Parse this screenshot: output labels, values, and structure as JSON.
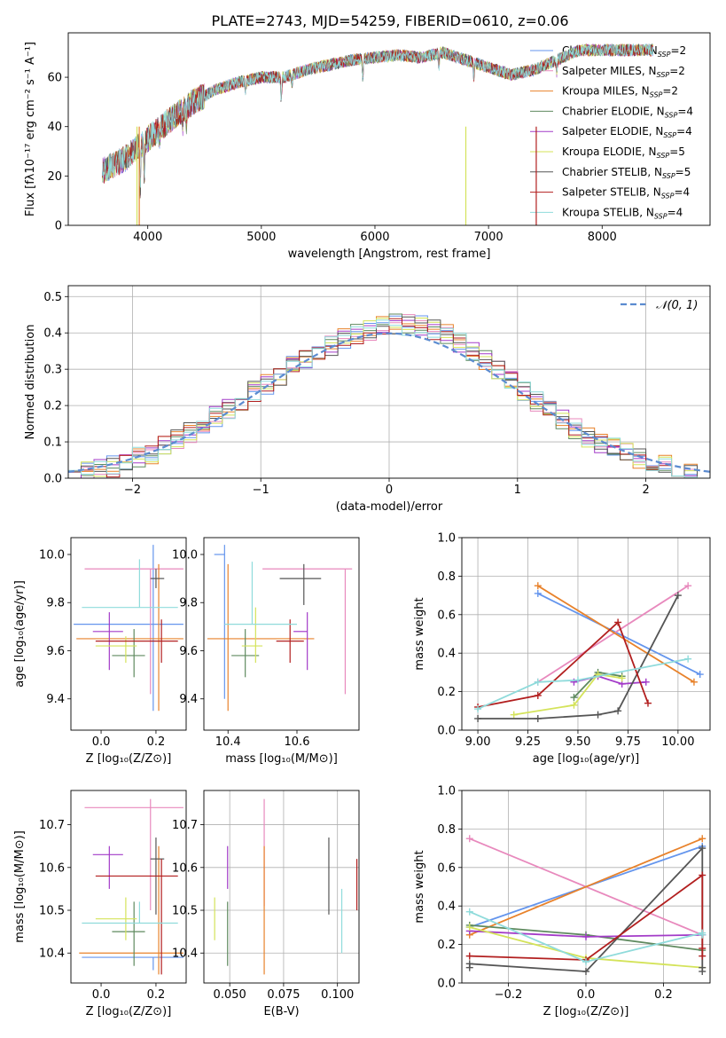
{
  "figure_title": "PLATE=2743, MJD=54259, FIBERID=0610, z=0.06",
  "colors": [
    "#6495ed",
    "#e889bd",
    "#e8822b",
    "#5f8a5f",
    "#a33bc8",
    "#d4e35a",
    "#555555",
    "#b21f1f",
    "#8fdbdb"
  ],
  "chart_data": [
    {
      "id": "spectrum",
      "type": "line",
      "title": "",
      "xlabel": "wavelength [Angstrom, rest frame]",
      "ylabel": "Flux [fλ10⁻¹⁷ erg cm⁻² s⁻¹ A⁻¹]",
      "xlim": [
        3300,
        8950
      ],
      "ylim": [
        0,
        78
      ],
      "xticks": [
        4000,
        5000,
        6000,
        7000,
        8000
      ],
      "yticks": [
        0,
        20,
        40,
        60
      ],
      "grid": false,
      "legend": "top-right",
      "continuum_x": [
        3600,
        3800,
        4000,
        4200,
        4400,
        4600,
        4800,
        5000,
        5200,
        5400,
        5600,
        5800,
        6000,
        6200,
        6400,
        6600,
        6800,
        7000,
        7200,
        7400,
        7600,
        7800
      ],
      "continuum_y": [
        22,
        27,
        35,
        43,
        50,
        55,
        58,
        60,
        60,
        63,
        65,
        67,
        68,
        69,
        68,
        70,
        67,
        64,
        61,
        63,
        67,
        71
      ],
      "absorption_lines": [
        [
          3934,
          18
        ],
        [
          3969,
          14
        ],
        [
          4102,
          6
        ],
        [
          4305,
          8
        ],
        [
          4340,
          6
        ],
        [
          4861,
          5
        ],
        [
          5175,
          10
        ],
        [
          5270,
          4
        ],
        [
          5893,
          7
        ],
        [
          6563,
          5
        ],
        [
          6870,
          6
        ],
        [
          7600,
          5
        ]
      ],
      "sky_spikes": [
        [
          3905,
          "#d4e35a"
        ],
        [
          3925,
          "#e8822b"
        ],
        [
          6800,
          "#d4e35a"
        ],
        [
          7420,
          "#b21f1f"
        ]
      ],
      "series": [
        {
          "name": "Chabrier MILES, N_SSP=2",
          "label_main": "Chabrier MILES, N",
          "label_sub": "SSP",
          "label_tail": "=2",
          "color": "#6495ed"
        },
        {
          "name": "Salpeter MILES, N_SSP=2",
          "label_main": "Salpeter MILES, N",
          "label_sub": "SSP",
          "label_tail": "=2",
          "color": "#e889bd"
        },
        {
          "name": "Kroupa MILES, N_SSP=2",
          "label_main": "Kroupa MILES, N",
          "label_sub": "SSP",
          "label_tail": "=2",
          "color": "#e8822b"
        },
        {
          "name": "Chabrier ELODIE, N_SSP=4",
          "label_main": "Chabrier ELODIE, N",
          "label_sub": "SSP",
          "label_tail": "=4",
          "color": "#5f8a5f"
        },
        {
          "name": "Salpeter ELODIE, N_SSP=4",
          "label_main": "Salpeter ELODIE, N",
          "label_sub": "SSP",
          "label_tail": "=4",
          "color": "#a33bc8"
        },
        {
          "name": "Kroupa ELODIE, N_SSP=5",
          "label_main": "Kroupa ELODIE, N",
          "label_sub": "SSP",
          "label_tail": "=5",
          "color": "#d4e35a"
        },
        {
          "name": "Chabrier STELIB, N_SSP=5",
          "label_main": "Chabrier STELIB, N",
          "label_sub": "SSP",
          "label_tail": "=5",
          "color": "#555555"
        },
        {
          "name": "Salpeter STELIB, N_SSP=4",
          "label_main": "Salpeter STELIB, N",
          "label_sub": "SSP",
          "label_tail": "=4",
          "color": "#b21f1f"
        },
        {
          "name": "Kroupa STELIB, N_SSP=4",
          "label_main": "Kroupa STELIB, N",
          "label_sub": "SSP",
          "label_tail": "=4",
          "color": "#8fdbdb"
        }
      ]
    },
    {
      "id": "residuals",
      "type": "histogram",
      "title": "",
      "xlabel": "(data-model)/error",
      "ylabel": "Normed distribution",
      "xlim": [
        -2.5,
        2.5
      ],
      "ylim": [
        0,
        0.53
      ],
      "xticks": [
        -2,
        -1,
        0,
        1,
        2
      ],
      "yticks": [
        0.0,
        0.1,
        0.2,
        0.3,
        0.4,
        0.5
      ],
      "grid": true,
      "legend": "top-right",
      "bin_width": 0.1,
      "reference_curve": {
        "name": "N(0,1)",
        "label": "𝒩(0, 1)",
        "color": "#5b8bd0",
        "style": "dashed"
      }
    },
    {
      "id": "age_vs_Z",
      "type": "errorbar",
      "title": "",
      "xlabel": "Z [log₁₀(Z/Z⊙)]",
      "ylabel": "age  [log₁₀(age/yr)]",
      "xlim": [
        -0.11,
        0.31
      ],
      "ylim": [
        9.27,
        10.07
      ],
      "xticks": [
        0.0,
        0.2
      ],
      "yticks": [
        9.4,
        9.6,
        9.8,
        10.0
      ],
      "grid": false,
      "points": [
        {
          "color": "#6495ed",
          "x": 0.19,
          "xerr": [
            0.29,
            0.11
          ],
          "y": 9.71,
          "yerr": [
            0.36,
            0.33
          ]
        },
        {
          "color": "#e889bd",
          "x": 0.18,
          "xerr": [
            0.24,
            0.12
          ],
          "y": 9.94,
          "yerr": [
            0.52,
            0.0
          ]
        },
        {
          "color": "#e8822b",
          "x": 0.21,
          "xerr": [
            0.3,
            0.09
          ],
          "y": 9.65,
          "yerr": [
            0.3,
            0.31
          ]
        },
        {
          "color": "#5f8a5f",
          "x": 0.12,
          "xerr": [
            0.08,
            0.04
          ],
          "y": 9.58,
          "yerr": [
            0.09,
            0.11
          ]
        },
        {
          "color": "#a33bc8",
          "x": 0.03,
          "xerr": [
            0.06,
            0.05
          ],
          "y": 9.68,
          "yerr": [
            0.16,
            0.08
          ]
        },
        {
          "color": "#d4e35a",
          "x": 0.09,
          "xerr": [
            0.11,
            0.04
          ],
          "y": 9.62,
          "yerr": [
            0.07,
            0.04
          ]
        },
        {
          "color": "#555555",
          "x": 0.2,
          "xerr": [
            0.02,
            0.03
          ],
          "y": 9.9,
          "yerr": [
            0.04,
            0.04
          ]
        },
        {
          "color": "#b21f1f",
          "x": 0.22,
          "xerr": [
            0.24,
            0.06
          ],
          "y": 9.64,
          "yerr": [
            0.09,
            0.09
          ]
        },
        {
          "color": "#8fdbdb",
          "x": 0.14,
          "xerr": [
            0.21,
            0.14
          ],
          "y": 9.78,
          "yerr": [
            0.0,
            0.2
          ]
        }
      ]
    },
    {
      "id": "age_vs_mass",
      "type": "errorbar",
      "title": "",
      "xlabel": "mass [log₁₀(M/M⊙)]",
      "ylabel": "",
      "xlim": [
        10.33,
        10.78
      ],
      "ylim": [
        9.27,
        10.07
      ],
      "xticks": [
        10.4,
        10.6
      ],
      "yticks": [
        9.4,
        9.6,
        9.8,
        10.0
      ],
      "grid": false,
      "points": [
        {
          "color": "#6495ed",
          "x": 10.39,
          "xerr": [
            0.03,
            0.0
          ],
          "y": 10.0,
          "yerr": [
            0.6,
            0.04
          ]
        },
        {
          "color": "#e889bd",
          "x": 10.74,
          "xerr": [
            0.24,
            0.02
          ],
          "y": 9.94,
          "yerr": [
            0.52,
            0.0
          ]
        },
        {
          "color": "#e8822b",
          "x": 10.4,
          "xerr": [
            0.06,
            0.25
          ],
          "y": 9.65,
          "yerr": [
            0.3,
            0.31
          ]
        },
        {
          "color": "#5f8a5f",
          "x": 10.45,
          "xerr": [
            0.04,
            0.04
          ],
          "y": 9.58,
          "yerr": [
            0.09,
            0.11
          ]
        },
        {
          "color": "#a33bc8",
          "x": 10.63,
          "xerr": [
            0.04,
            0.0
          ],
          "y": 9.68,
          "yerr": [
            0.16,
            0.08
          ]
        },
        {
          "color": "#d4e35a",
          "x": 10.48,
          "xerr": [
            0.04,
            0.02
          ],
          "y": 9.62,
          "yerr": [
            0.07,
            0.16
          ]
        },
        {
          "color": "#555555",
          "x": 10.62,
          "xerr": [
            0.07,
            0.05
          ],
          "y": 9.9,
          "yerr": [
            0.11,
            0.06
          ]
        },
        {
          "color": "#b21f1f",
          "x": 10.58,
          "xerr": [
            0.04,
            0.04
          ],
          "y": 9.64,
          "yerr": [
            0.09,
            0.09
          ]
        },
        {
          "color": "#8fdbdb",
          "x": 10.47,
          "xerr": [
            0.08,
            0.13
          ],
          "y": 9.71,
          "yerr": [
            0.0,
            0.26
          ]
        }
      ]
    },
    {
      "id": "mass_weight_vs_age",
      "type": "line",
      "title": "",
      "xlabel": "age  [log₁₀(age/yr)]",
      "ylabel": "mass weight",
      "xlim": [
        8.92,
        10.16
      ],
      "ylim": [
        0,
        1.0
      ],
      "xticks": [
        9.0,
        9.25,
        9.5,
        9.75,
        10.0
      ],
      "yticks": [
        0.0,
        0.2,
        0.4,
        0.6,
        0.8,
        1.0
      ],
      "grid": true,
      "series": [
        {
          "color": "#6495ed",
          "x": [
            9.3,
            10.11
          ],
          "y": [
            0.71,
            0.29
          ]
        },
        {
          "color": "#e889bd",
          "x": [
            9.3,
            10.05
          ],
          "y": [
            0.25,
            0.75
          ]
        },
        {
          "color": "#e8822b",
          "x": [
            9.3,
            10.08
          ],
          "y": [
            0.75,
            0.25
          ]
        },
        {
          "color": "#5f8a5f",
          "x": [
            9.48,
            9.6,
            9.72
          ],
          "y": [
            0.17,
            0.3,
            0.28
          ]
        },
        {
          "color": "#a33bc8",
          "x": [
            9.48,
            9.6,
            9.72,
            9.84
          ],
          "y": [
            0.25,
            0.28,
            0.24,
            0.25
          ]
        },
        {
          "color": "#d4e35a",
          "x": [
            9.18,
            9.48,
            9.6,
            9.72
          ],
          "y": [
            0.08,
            0.13,
            0.29,
            0.27
          ]
        },
        {
          "color": "#555555",
          "x": [
            9.0,
            9.3,
            9.6,
            9.7,
            10.0
          ],
          "y": [
            0.06,
            0.06,
            0.08,
            0.1,
            0.7
          ]
        },
        {
          "color": "#b21f1f",
          "x": [
            9.0,
            9.3,
            9.7,
            9.85
          ],
          "y": [
            0.12,
            0.18,
            0.56,
            0.14
          ]
        },
        {
          "color": "#8fdbdb",
          "x": [
            9.0,
            9.3,
            9.5,
            10.05
          ],
          "y": [
            0.11,
            0.25,
            0.26,
            0.37
          ]
        }
      ]
    },
    {
      "id": "mass_vs_Z",
      "type": "errorbar",
      "title": "",
      "xlabel": "Z [log₁₀(Z/Z⊙)]",
      "ylabel": "mass [log₁₀(M/M⊙)]",
      "xlim": [
        -0.11,
        0.31
      ],
      "ylim": [
        10.33,
        10.78
      ],
      "xticks": [
        0.0,
        0.2
      ],
      "yticks": [
        10.4,
        10.5,
        10.6,
        10.7
      ],
      "grid": false,
      "points": [
        {
          "color": "#6495ed",
          "x": 0.19,
          "xerr": [
            0.26,
            0.11
          ],
          "y": 10.39,
          "yerr": [
            0.03,
            0.0
          ]
        },
        {
          "color": "#e889bd",
          "x": 0.18,
          "xerr": [
            0.24,
            0.12
          ],
          "y": 10.74,
          "yerr": [
            0.24,
            0.02
          ]
        },
        {
          "color": "#e8822b",
          "x": 0.21,
          "xerr": [
            0.29,
            0.09
          ],
          "y": 10.4,
          "yerr": [
            0.05,
            0.25
          ]
        },
        {
          "color": "#5f8a5f",
          "x": 0.12,
          "xerr": [
            0.08,
            0.04
          ],
          "y": 10.45,
          "yerr": [
            0.08,
            0.07
          ]
        },
        {
          "color": "#a33bc8",
          "x": 0.03,
          "xerr": [
            0.06,
            0.05
          ],
          "y": 10.63,
          "yerr": [
            0.08,
            0.02
          ]
        },
        {
          "color": "#d4e35a",
          "x": 0.09,
          "xerr": [
            0.11,
            0.04
          ],
          "y": 10.48,
          "yerr": [
            0.05,
            0.05
          ]
        },
        {
          "color": "#555555",
          "x": 0.2,
          "xerr": [
            0.02,
            0.03
          ],
          "y": 10.62,
          "yerr": [
            0.13,
            0.05
          ]
        },
        {
          "color": "#b21f1f",
          "x": 0.22,
          "xerr": [
            0.24,
            0.06
          ],
          "y": 10.58,
          "yerr": [
            0.23,
            0.04
          ]
        },
        {
          "color": "#8fdbdb",
          "x": 0.14,
          "xerr": [
            0.21,
            0.14
          ],
          "y": 10.47,
          "yerr": [
            0.0,
            0.05
          ]
        }
      ]
    },
    {
      "id": "mass_vs_ebv",
      "type": "errorbar",
      "title": "",
      "xlabel": "E(B-V)",
      "ylabel": "",
      "xlim": [
        0.038,
        0.11
      ],
      "ylim": [
        10.33,
        10.78
      ],
      "xticks": [
        0.05,
        0.075,
        0.1
      ],
      "xtick_labels": [
        "0.050",
        "0.075",
        "0.100"
      ],
      "yticks": [
        10.4,
        10.5,
        10.6,
        10.7
      ],
      "grid": true,
      "points": [
        {
          "color": "#d4e35a",
          "x": 0.043,
          "y": 10.48,
          "yerr": [
            0.05,
            0.05
          ]
        },
        {
          "color": "#5f8a5f",
          "x": 0.049,
          "y": 10.45,
          "yerr": [
            0.08,
            0.07
          ]
        },
        {
          "color": "#a33bc8",
          "x": 0.049,
          "y": 10.6,
          "yerr": [
            0.05,
            0.05
          ]
        },
        {
          "color": "#e889bd",
          "x": 0.066,
          "y": 10.6,
          "yerr": [
            0.09,
            0.16
          ]
        },
        {
          "color": "#e8822b",
          "x": 0.066,
          "y": 10.5,
          "yerr": [
            0.15,
            0.15
          ]
        },
        {
          "color": "#555555",
          "x": 0.096,
          "y": 10.58,
          "yerr": [
            0.09,
            0.09
          ]
        },
        {
          "color": "#8fdbdb",
          "x": 0.102,
          "y": 10.47,
          "yerr": [
            0.07,
            0.08
          ]
        },
        {
          "color": "#b21f1f",
          "x": 0.109,
          "y": 10.56,
          "yerr": [
            0.06,
            0.06
          ]
        }
      ]
    },
    {
      "id": "mass_weight_vs_Z",
      "type": "line",
      "title": "",
      "xlabel": "Z [log₁₀(Z/Z⊙)]",
      "ylabel": "mass weight",
      "xlim": [
        -0.32,
        0.32
      ],
      "ylim": [
        0,
        1.0
      ],
      "xticks": [
        -0.2,
        0.0,
        0.2
      ],
      "xtick_labels": [
        "−0.2",
        "0.0",
        "0.2"
      ],
      "yticks": [
        0.0,
        0.2,
        0.4,
        0.6,
        0.8,
        1.0
      ],
      "grid": true,
      "series": [
        {
          "color": "#6495ed",
          "x": [
            -0.3,
            0.3
          ],
          "y": [
            0.29,
            0.71
          ]
        },
        {
          "color": "#e889bd",
          "x": [
            -0.3,
            0.3
          ],
          "y": [
            0.75,
            0.25
          ]
        },
        {
          "color": "#e8822b",
          "x": [
            -0.3,
            0.3
          ],
          "y": [
            0.25,
            0.75
          ]
        },
        {
          "color": "#5f8a5f",
          "x": [
            -0.3,
            0.0,
            0.3
          ],
          "y": [
            0.3,
            0.25,
            0.17
          ]
        },
        {
          "color": "#a33bc8",
          "x": [
            -0.3,
            0.0,
            0.3
          ],
          "y": [
            0.27,
            0.24,
            0.25
          ]
        },
        {
          "color": "#d4e35a",
          "x": [
            -0.3,
            0.0,
            0.3
          ],
          "y": [
            0.29,
            0.13,
            0.08
          ]
        },
        {
          "color": "#555555",
          "x": [
            -0.3,
            -0.3,
            0.0,
            0.3,
            0.3,
            0.3
          ],
          "y": [
            0.08,
            0.1,
            0.06,
            0.7,
            0.08,
            0.06
          ]
        },
        {
          "color": "#b21f1f",
          "x": [
            -0.3,
            0.0,
            0.3,
            0.3,
            0.3
          ],
          "y": [
            0.14,
            0.12,
            0.56,
            0.18,
            0.14
          ]
        },
        {
          "color": "#8fdbdb",
          "x": [
            -0.3,
            0.0,
            0.3,
            0.3
          ],
          "y": [
            0.37,
            0.11,
            0.26,
            0.25
          ]
        }
      ]
    }
  ]
}
